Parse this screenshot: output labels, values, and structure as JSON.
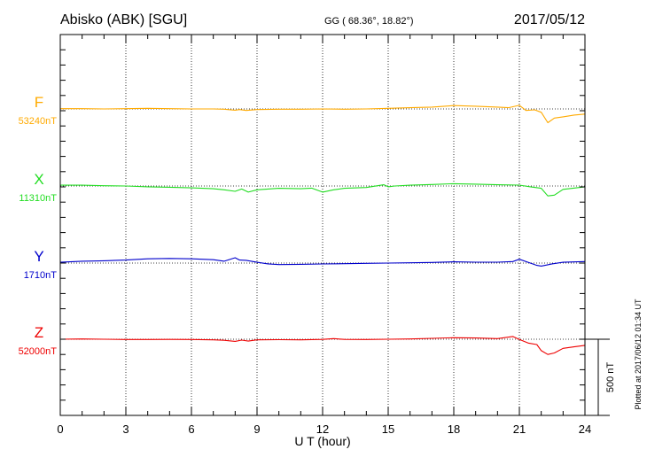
{
  "header": {
    "station": "Abisko (ABK)  [SGU]",
    "coords": "GG ( 68.36°,  18.82°)",
    "date": "2017/05/12"
  },
  "side_note": "Plotted at 2017/06/12 01:34 UT",
  "chart_data": {
    "type": "line",
    "xlabel": "U T (hour)",
    "xlim": [
      0,
      24
    ],
    "xticks": [
      0,
      3,
      6,
      9,
      12,
      15,
      18,
      21,
      24
    ],
    "grid": true,
    "scale_bar": {
      "label": "500 nT",
      "value_nT": 500
    },
    "series": [
      {
        "name": "F",
        "baseline_label": "53240nT",
        "baseline_nT": 53240,
        "color": "#ffaa00",
        "x": [
          0,
          1,
          2,
          3,
          4,
          5,
          6,
          7,
          7.5,
          8,
          8.2,
          8.5,
          9,
          10,
          11,
          12,
          13,
          14,
          15,
          16,
          17,
          18,
          19,
          20,
          20.5,
          21,
          21.3,
          21.7,
          22,
          22.3,
          22.6,
          23,
          23.5,
          24
        ],
        "y": [
          53242,
          53242,
          53240,
          53242,
          53244,
          53242,
          53240,
          53240,
          53238,
          53232,
          53236,
          53230,
          53236,
          53238,
          53238,
          53240,
          53238,
          53240,
          53244,
          53248,
          53252,
          53262,
          53258,
          53252,
          53248,
          53264,
          53230,
          53234,
          53218,
          53150,
          53180,
          53188,
          53200,
          53206
        ]
      },
      {
        "name": "X",
        "baseline_label": "11310nT",
        "baseline_nT": 11310,
        "color": "#22dd22",
        "x": [
          0,
          1,
          2,
          3,
          4,
          5,
          6,
          7,
          7.5,
          8,
          8.3,
          8.6,
          9,
          10,
          11,
          11.5,
          12,
          12.5,
          13,
          14,
          14.8,
          15,
          15.3,
          16,
          17,
          18,
          19,
          20,
          21,
          21.5,
          22,
          22.3,
          22.6,
          23,
          24
        ],
        "y": [
          11315,
          11315,
          11312,
          11310,
          11305,
          11302,
          11298,
          11292,
          11285,
          11275,
          11290,
          11270,
          11285,
          11295,
          11292,
          11296,
          11270,
          11285,
          11295,
          11300,
          11318,
          11305,
          11310,
          11315,
          11320,
          11325,
          11322,
          11318,
          11316,
          11305,
          11295,
          11245,
          11250,
          11288,
          11305
        ]
      },
      {
        "name": "Y",
        "baseline_label": "1710nT",
        "baseline_nT": 1710,
        "color": "#0000cc",
        "x": [
          0,
          1,
          2,
          3,
          4,
          5,
          6,
          7,
          7.5,
          8,
          8.2,
          8.5,
          9,
          9.5,
          10,
          11,
          12,
          13,
          14,
          15,
          16,
          17,
          18,
          19,
          20,
          20.7,
          21,
          21.5,
          21.8,
          22,
          22.5,
          23,
          24
        ],
        "y": [
          1715,
          1722,
          1725,
          1730,
          1738,
          1740,
          1738,
          1732,
          1722,
          1745,
          1730,
          1728,
          1715,
          1705,
          1700,
          1702,
          1704,
          1706,
          1708,
          1710,
          1712,
          1714,
          1718,
          1716,
          1716,
          1720,
          1735,
          1710,
          1695,
          1690,
          1705,
          1715,
          1720
        ]
      },
      {
        "name": "Z",
        "baseline_label": "52000nT",
        "baseline_nT": 52000,
        "color": "#ee0000",
        "x": [
          0,
          1,
          2,
          3,
          4,
          5,
          6,
          7,
          7.5,
          8,
          8.3,
          8.6,
          9,
          10,
          11,
          12,
          12.5,
          13,
          14,
          15,
          16,
          17,
          18,
          19,
          20,
          20.7,
          21,
          21.4,
          21.8,
          22,
          22.3,
          22.6,
          23,
          23.5,
          24
        ],
        "y": [
          52000,
          52002,
          52000,
          51998,
          51998,
          51999,
          51998,
          51996,
          51993,
          51986,
          51994,
          51988,
          51996,
          51997,
          51996,
          51999,
          52004,
          51999,
          51998,
          52000,
          52002,
          52006,
          52010,
          52008,
          52004,
          52018,
          51998,
          51975,
          51965,
          51925,
          51900,
          51910,
          51940,
          51950,
          51960
        ]
      }
    ]
  }
}
